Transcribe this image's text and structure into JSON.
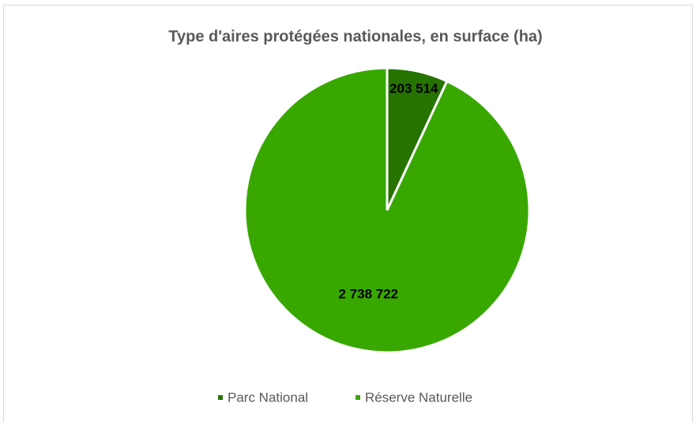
{
  "chart_data": {
    "type": "pie",
    "title": "Type d'aires protégées nationales, en surface (ha)",
    "categories": [
      "Parc National",
      "Réserve Naturelle"
    ],
    "values": [
      203514,
      2738722
    ],
    "value_labels": [
      "203 514",
      "2 738 722"
    ],
    "colors": [
      "#267300",
      "#38a800"
    ],
    "legend": "bottom"
  }
}
